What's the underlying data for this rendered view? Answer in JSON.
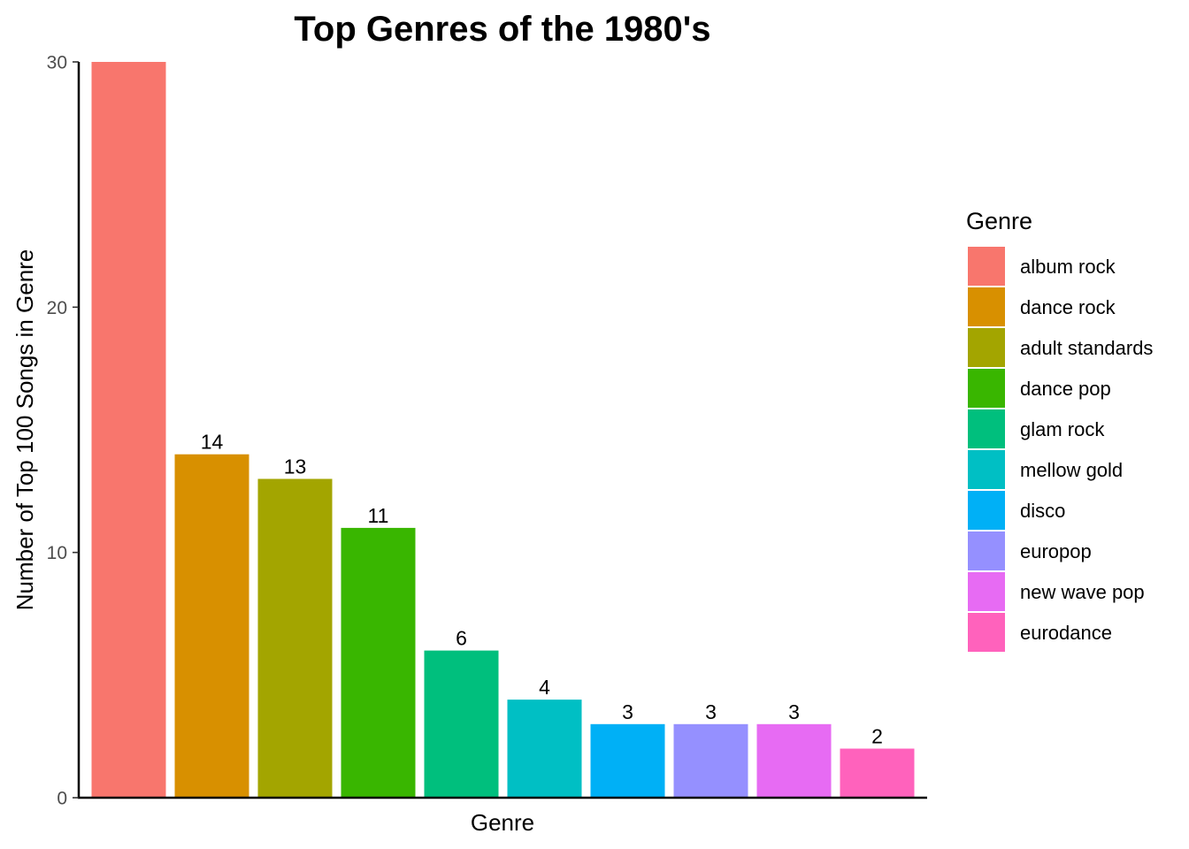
{
  "chart_data": {
    "type": "bar",
    "title": "Top Genres of the 1980's",
    "xlabel": "Genre",
    "ylabel": "Number of Top 100 Songs in Genre",
    "ylim": [
      0,
      30
    ],
    "yticks": [
      0,
      10,
      20,
      30
    ],
    "grid": false,
    "legend": {
      "title": "Genre",
      "placement": "right"
    },
    "categories": [
      "album rock",
      "dance rock",
      "adult standards",
      "dance pop",
      "glam rock",
      "mellow gold",
      "disco",
      "europop",
      "new wave pop",
      "eurodance"
    ],
    "values": [
      30,
      14,
      13,
      11,
      6,
      4,
      3,
      3,
      3,
      2
    ],
    "data_labels": [
      "",
      "14",
      "13",
      "11",
      "6",
      "4",
      "3",
      "3",
      "3",
      "2"
    ],
    "colors": [
      "#F8766D",
      "#D89000",
      "#A3A500",
      "#39B600",
      "#00BF7D",
      "#00BFC4",
      "#00B0F6",
      "#9590FF",
      "#E76BF3",
      "#FF62BC"
    ]
  }
}
